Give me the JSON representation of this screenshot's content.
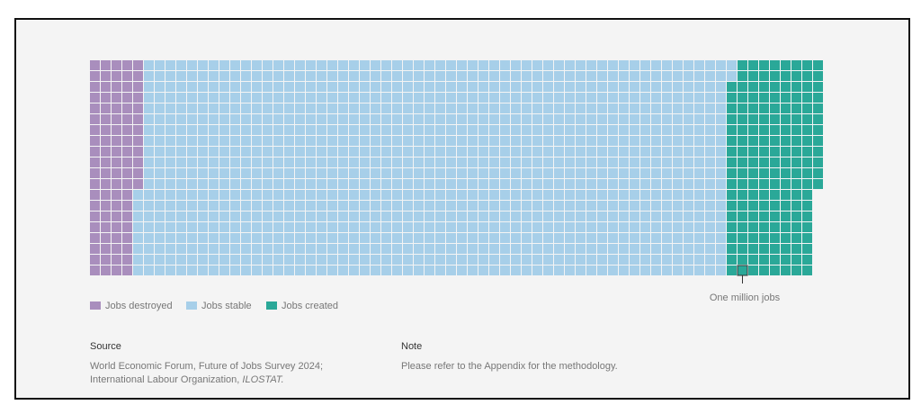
{
  "chart_data": {
    "type": "waffle",
    "series": [
      {
        "name": "Jobs destroyed",
        "color": "#a98ebd",
        "values": 92
      },
      {
        "name": "Jobs stable",
        "color": "#a7cfe9",
        "values": 1090
      },
      {
        "name": "Jobs created",
        "color": "#2aa898",
        "values": 170
      }
    ],
    "annotation": "One million jobs"
  },
  "footer": {
    "source": {
      "heading": "Source",
      "lines": [
        "World Economic Forum, Future of Jobs Survey 2024;",
        "International Labour Organization, ",
        "ILOSTAT."
      ]
    },
    "note": {
      "heading": "Note",
      "text": "Please refer to the Appendix for the methodology."
    }
  }
}
